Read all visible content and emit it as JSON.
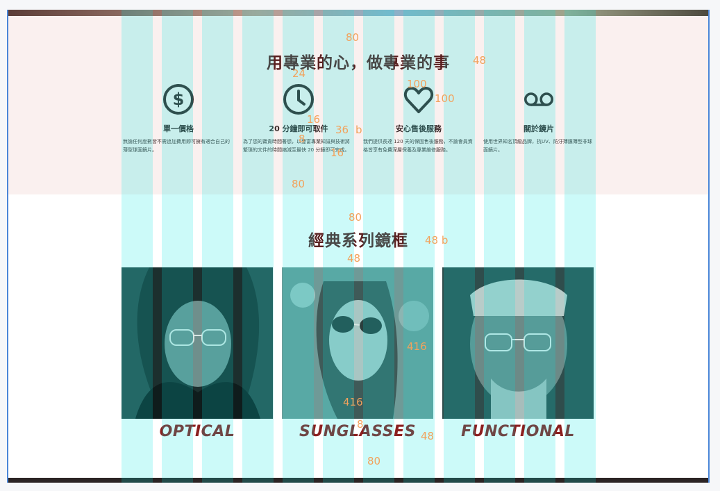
{
  "section_features": {
    "title": "用專業的心，做專業的事",
    "items": [
      {
        "icon": "dollar-icon",
        "title": "單一價格",
        "desc": "無論任何度數皆不需追加費用即可擁有適合自己的薄型球面鏡片。"
      },
      {
        "icon": "clock-icon",
        "title": "20 分鐘即可取件",
        "desc": "為了您的寶貴時間著想，以豐富專業知識與技術將繁瑣的文件的時間縮減至最快 20 分鐘即可完成。"
      },
      {
        "icon": "heart-icon",
        "title": "安心售後服務",
        "desc": "我們提供長達 120 天的保固售後服務，不論會員資格皆享有免費深層保養及專業維修服務。"
      },
      {
        "icon": "voicemail-icon",
        "title": "關於鏡片",
        "desc": "使用世界知名頂級品牌，抗UV、防汙薄膜薄型非球面鏡片。"
      }
    ]
  },
  "section_frames": {
    "title": "經典系列鏡框",
    "cards": [
      {
        "label": "OPTICAL"
      },
      {
        "label": "SUNGLASSES"
      },
      {
        "label": "FUNCTIONAL"
      }
    ]
  },
  "annotations": [
    "80",
    "48",
    "24",
    "100",
    "100",
    "16",
    "36",
    "b",
    "8",
    "16",
    "80",
    "80",
    "48 b",
    "48",
    "416",
    "416",
    "8",
    "48",
    "80"
  ],
  "colors": {
    "accent": "#8b1f1f",
    "section_bg": "#faf0ef",
    "grid_overlay": "#00e6e1",
    "annotation": "#f2a25c"
  }
}
